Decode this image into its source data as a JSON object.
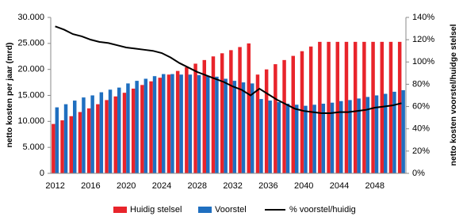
{
  "chart_data": {
    "type": "bar",
    "categories": [
      "2012",
      null,
      null,
      null,
      "2016",
      null,
      null,
      null,
      "2020",
      null,
      null,
      null,
      "2024",
      null,
      null,
      null,
      "2028",
      null,
      null,
      null,
      "2032",
      null,
      null,
      null,
      "2036",
      null,
      null,
      null,
      "2040",
      null,
      null,
      null,
      "2044",
      null,
      null,
      null,
      "2048",
      null,
      null,
      null
    ],
    "series": [
      {
        "name": "Huidig stelsel",
        "color": "#e8242b",
        "type": "bar",
        "values": [
          9500,
          10200,
          11000,
          11800,
          12500,
          13300,
          14100,
          14800,
          15500,
          16300,
          17000,
          17700,
          18400,
          19000,
          19700,
          20400,
          21100,
          21800,
          22500,
          23100,
          23700,
          24300,
          25000,
          19000,
          20000,
          21000,
          21800,
          22600,
          23500,
          24400,
          25300,
          25300,
          25300,
          25300,
          25300,
          25300,
          25300,
          25300,
          25300,
          25300
        ]
      },
      {
        "name": "Voorstel",
        "color": "#1f6fc0",
        "type": "bar",
        "values": [
          12700,
          13300,
          14000,
          14600,
          15000,
          15600,
          16100,
          16500,
          17300,
          17800,
          18200,
          18700,
          19100,
          19100,
          19000,
          19000,
          18900,
          18800,
          18600,
          18200,
          17800,
          17500,
          17300,
          14300,
          14000,
          13700,
          13400,
          13200,
          13000,
          13200,
          13400,
          13600,
          13900,
          14100,
          14400,
          14700,
          15000,
          15300,
          15700,
          16000
        ]
      },
      {
        "name": "% voorstel/huidig",
        "color": "#000000",
        "type": "line",
        "axis": "y2",
        "values": [
          132,
          129,
          125,
          123,
          120,
          118,
          117,
          115,
          113,
          112,
          111,
          110,
          108,
          104,
          99,
          95,
          91,
          88,
          85,
          82,
          78,
          75,
          70,
          76,
          71,
          66,
          62,
          58,
          56,
          55,
          54,
          54,
          55,
          55,
          56,
          57,
          59,
          60,
          61,
          63
        ]
      }
    ],
    "ylabel": "netto kosten per jaar (mrd)",
    "y2label": "netto kosten voorstel/huidge stelsel",
    "ylim": [
      0,
      30000
    ],
    "yticks": [
      {
        "value": 0,
        "label": "0"
      },
      {
        "value": 5000,
        "label": "5.000"
      },
      {
        "value": 10000,
        "label": "10.000"
      },
      {
        "value": 15000,
        "label": "15.000"
      },
      {
        "value": 20000,
        "label": "20.000"
      },
      {
        "value": 25000,
        "label": "25.000"
      },
      {
        "value": 30000,
        "label": "30.000"
      }
    ],
    "y2lim": [
      0,
      140
    ],
    "y2ticks": [
      {
        "value": 0,
        "label": "0%"
      },
      {
        "value": 20,
        "label": "20%"
      },
      {
        "value": 40,
        "label": "40%"
      },
      {
        "value": 60,
        "label": "60%"
      },
      {
        "value": 80,
        "label": "80%"
      },
      {
        "value": 100,
        "label": "100%"
      },
      {
        "value": 120,
        "label": "120%"
      },
      {
        "value": 140,
        "label": "140%"
      }
    ],
    "grid": false,
    "legend": "bottom"
  }
}
